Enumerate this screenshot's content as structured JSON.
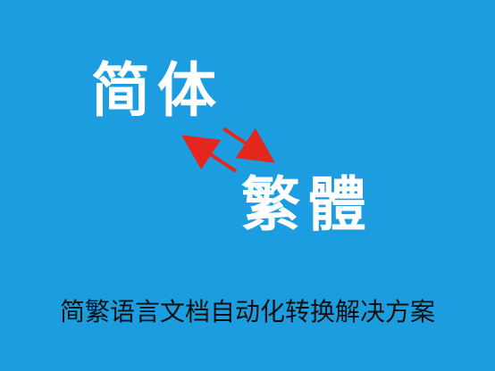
{
  "colors": {
    "background": "#1b9de0",
    "title_text": "#ffffff",
    "arrow": "#e5261d",
    "caption_text": "#111111"
  },
  "banner": {
    "simplified_label": "简体",
    "traditional_label": "繁體",
    "caption": "简繁语言文档自动化转换解决方案"
  },
  "icons": [
    "double-arrow-icon"
  ]
}
